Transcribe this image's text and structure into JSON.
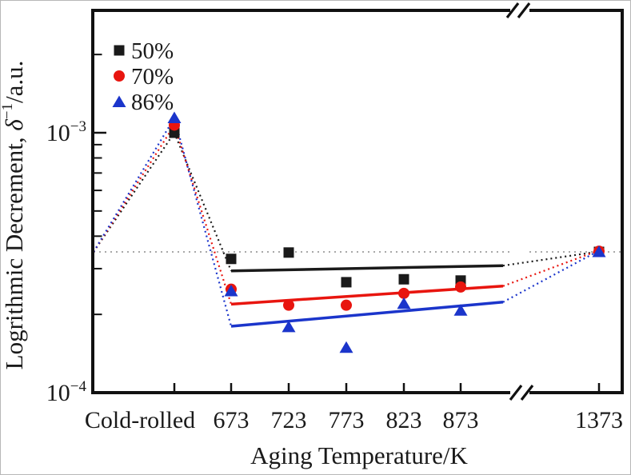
{
  "figure": {
    "background": "#ffffff",
    "border_color": "#b8b8b8"
  },
  "chart_data": {
    "type": "scatter",
    "title": "",
    "x_axis": {
      "label": "Aging Temperature/K",
      "categories": [
        "Cold-rolled",
        "673",
        "723",
        "773",
        "823",
        "873",
        "1373"
      ],
      "axis_break_between": [
        "873",
        "1373"
      ]
    },
    "y_axis": {
      "label_prefix": "Logrithmic Decrement, ",
      "label_symbol": "δ",
      "label_symbol_exponent": "−1",
      "label_suffix": "/a.u.",
      "scale": "log",
      "range": [
        0.0001,
        0.003
      ],
      "ticks": [
        {
          "value": 0.001,
          "base": "10",
          "exponent": "−3"
        },
        {
          "value": 0.0001,
          "base": "10",
          "exponent": "−4"
        }
      ]
    },
    "series": [
      {
        "name": "50%",
        "marker": "square",
        "color": "#1a1a1a",
        "values": [
          0.001,
          0.000327,
          0.000346,
          0.000266,
          0.000273,
          0.00027,
          0.000348
        ]
      },
      {
        "name": "70%",
        "marker": "circle",
        "color": "#e8150f",
        "values": [
          0.00107,
          0.00025,
          0.000217,
          0.000217,
          0.000241,
          0.000255,
          0.00035
        ]
      },
      {
        "name": "86%",
        "marker": "triangle-up",
        "color": "#1b35cb",
        "values": [
          0.00114,
          0.000246,
          0.000179,
          0.000149,
          0.00022,
          0.000207,
          0.000348
        ]
      }
    ],
    "trend_lines": [
      {
        "series": "50%",
        "color": "#1a1a1a",
        "from_category": "673",
        "to": "axis-break",
        "from_value": 0.000294,
        "to_value": 0.000308
      },
      {
        "series": "70%",
        "color": "#e8150f",
        "from_category": "673",
        "to": "axis-break",
        "from_value": 0.000219,
        "to_value": 0.000257
      },
      {
        "series": "86%",
        "color": "#1b35cb",
        "from_category": "673",
        "to": "axis-break",
        "from_value": 0.00018,
        "to_value": 0.000223
      }
    ],
    "reference_line": {
      "value": 0.000348,
      "style": "dotted",
      "color": "#9c9c9c"
    },
    "connectors": {
      "style": "dotted",
      "left_anchor_value": 0.000348,
      "links": "axis level → Cold-rolled point → 673 trend start; trend end → 1373 point"
    },
    "legend": {
      "position": "top-left"
    }
  }
}
